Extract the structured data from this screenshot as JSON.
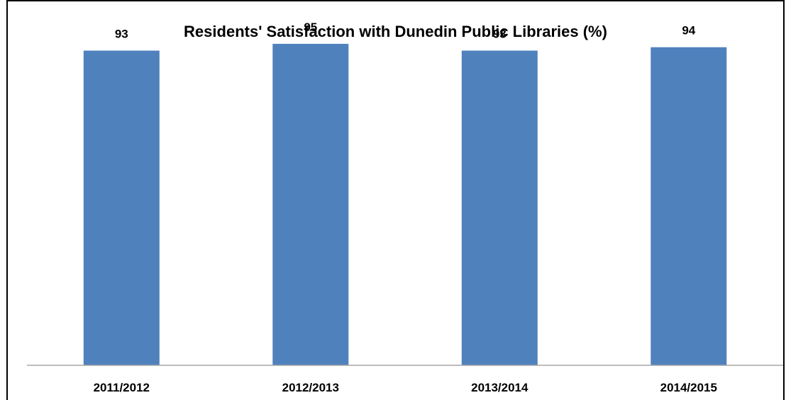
{
  "chart_data": {
    "type": "bar",
    "title": "Residents' Satisfaction with Dunedin Public Libraries (%)",
    "categories": [
      "2011/2012",
      "2012/2013",
      "2013/2014",
      "2014/2015"
    ],
    "values": [
      93,
      95,
      93,
      94
    ],
    "xlabel": "",
    "ylabel": "",
    "ylim": [
      0,
      100
    ],
    "grid": false,
    "legend": "none",
    "bar_color": "#4F81BD",
    "axis_color": "#A6A6A6"
  }
}
